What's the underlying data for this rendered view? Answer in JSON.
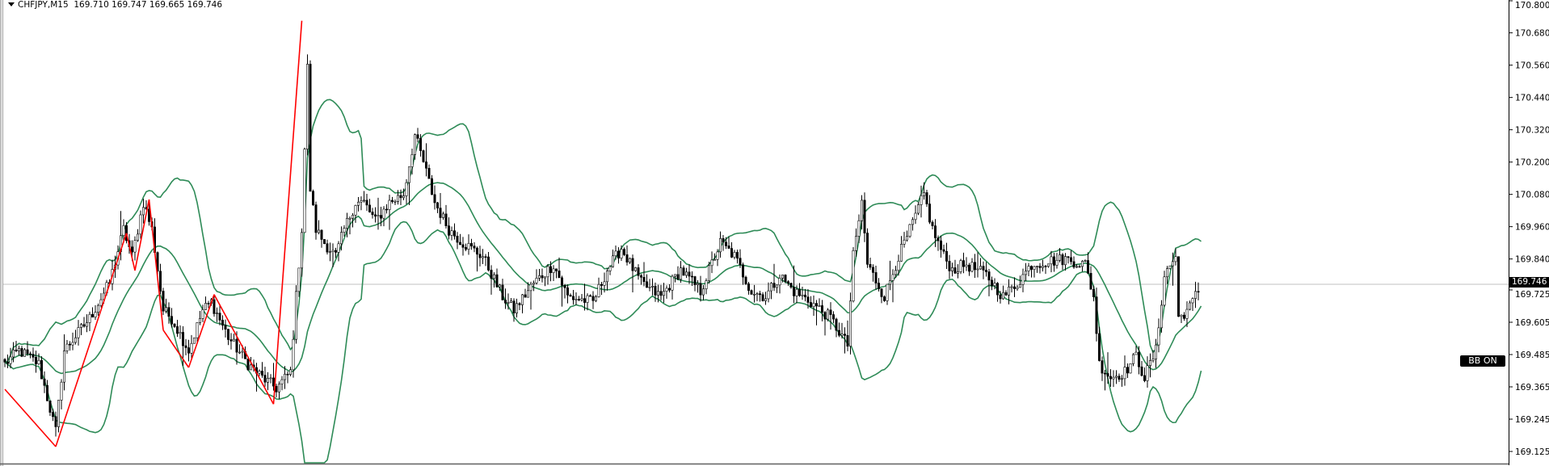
{
  "header": {
    "symbol_timeframe": "CHFJPY,M15",
    "ohlc": "169.710 169.747 169.665 169.746"
  },
  "bb_label": "BB ON",
  "colors": {
    "background": "#ffffff",
    "bands": "#2e8b57",
    "zigzag": "#ff0000",
    "candle": "#000000",
    "bull_body": "#ffffff",
    "bear_body": "#000000",
    "price_line": "#c0c0c0"
  },
  "chart_data": {
    "type": "candlestick",
    "symbol": "CHFJPY",
    "timeframe": "M15",
    "bar_count": 424,
    "last_bar": {
      "open": 169.71,
      "high": 169.747,
      "low": 169.665,
      "close": 169.746
    },
    "current_price": "169.746",
    "ylim": [
      169.125,
      170.8
    ],
    "y_ticks": [
      "170.800",
      "170.680",
      "170.560",
      "170.440",
      "170.320",
      "170.200",
      "170.080",
      "169.960",
      "169.840",
      "169.725",
      "169.605",
      "169.485",
      "169.365",
      "169.245",
      "169.125"
    ],
    "close_path": [
      [
        0,
        169.45
      ],
      [
        5,
        169.5
      ],
      [
        12,
        169.45
      ],
      [
        18,
        169.2
      ],
      [
        21,
        169.5
      ],
      [
        30,
        169.62
      ],
      [
        37,
        169.75
      ],
      [
        42,
        169.95
      ],
      [
        45,
        169.85
      ],
      [
        49,
        170.05
      ],
      [
        52,
        169.95
      ],
      [
        56,
        169.65
      ],
      [
        59,
        169.62
      ],
      [
        65,
        169.5
      ],
      [
        70,
        169.65
      ],
      [
        73,
        169.68
      ],
      [
        79,
        169.55
      ],
      [
        86,
        169.45
      ],
      [
        91,
        169.4
      ],
      [
        96,
        169.36
      ],
      [
        101,
        169.42
      ],
      [
        103,
        169.7
      ],
      [
        105,
        169.95
      ],
      [
        107,
        170.55
      ],
      [
        108,
        170.1
      ],
      [
        110,
        169.95
      ],
      [
        113,
        169.9
      ],
      [
        117,
        169.85
      ],
      [
        120,
        169.95
      ],
      [
        124,
        170.05
      ],
      [
        127,
        170.05
      ],
      [
        131,
        169.98
      ],
      [
        136,
        170.05
      ],
      [
        141,
        170.08
      ],
      [
        145,
        170.3
      ],
      [
        148,
        170.2
      ],
      [
        152,
        170.05
      ],
      [
        157,
        169.95
      ],
      [
        162,
        169.9
      ],
      [
        169,
        169.85
      ],
      [
        176,
        169.7
      ],
      [
        180,
        169.65
      ],
      [
        187,
        169.75
      ],
      [
        194,
        169.82
      ],
      [
        199,
        169.7
      ],
      [
        208,
        169.68
      ],
      [
        213,
        169.8
      ],
      [
        218,
        169.88
      ],
      [
        225,
        169.75
      ],
      [
        232,
        169.7
      ],
      [
        239,
        169.8
      ],
      [
        246,
        169.72
      ],
      [
        253,
        169.9
      ],
      [
        258,
        169.85
      ],
      [
        264,
        169.72
      ],
      [
        269,
        169.7
      ],
      [
        274,
        169.78
      ],
      [
        279,
        169.72
      ],
      [
        285,
        169.68
      ],
      [
        292,
        169.62
      ],
      [
        298,
        169.52
      ],
      [
        300,
        169.85
      ],
      [
        303,
        170.05
      ],
      [
        305,
        169.82
      ],
      [
        311,
        169.7
      ],
      [
        316,
        169.85
      ],
      [
        319,
        169.92
      ],
      [
        325,
        170.08
      ],
      [
        328,
        169.95
      ],
      [
        332,
        169.85
      ],
      [
        335,
        169.8
      ],
      [
        340,
        169.82
      ],
      [
        347,
        169.78
      ],
      [
        353,
        169.7
      ],
      [
        358,
        169.75
      ],
      [
        363,
        169.82
      ],
      [
        368,
        169.83
      ],
      [
        375,
        169.84
      ],
      [
        382,
        169.82
      ],
      [
        385,
        169.7
      ],
      [
        387,
        169.45
      ],
      [
        391,
        169.4
      ],
      [
        396,
        169.42
      ],
      [
        400,
        169.48
      ],
      [
        403,
        169.4
      ],
      [
        407,
        169.5
      ],
      [
        410,
        169.78
      ],
      [
        414,
        169.85
      ],
      [
        415,
        169.62
      ],
      [
        419,
        169.66
      ],
      [
        423,
        169.746
      ]
    ],
    "zigzag": [
      [
        0,
        169.356
      ],
      [
        18,
        169.143
      ],
      [
        43,
        169.936
      ],
      [
        46,
        169.797
      ],
      [
        51,
        170.061
      ],
      [
        56,
        169.576
      ],
      [
        65,
        169.437
      ],
      [
        74,
        169.708
      ],
      [
        95,
        169.301
      ],
      [
        105,
        170.725
      ]
    ],
    "indicators": [
      "Bollinger Bands (upper, middle, lower)",
      "ZigZag"
    ],
    "grid": false
  }
}
